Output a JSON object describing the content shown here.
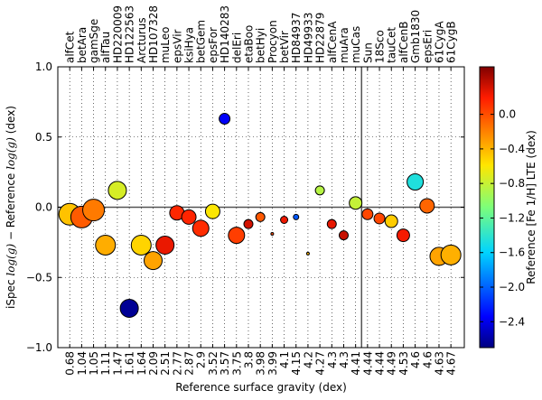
{
  "chart_data": {
    "type": "scatter",
    "xlabel": "Reference surface gravity (dex)",
    "ylabel": "iSpec log(g) − Reference log(g) (dex)",
    "ylabel_prefix": "iSpec ",
    "ylabel_mid": " − Reference ",
    "ylabel_suffix": " (dex)",
    "ylabel_math": "log(g)",
    "ylim": [
      -1.0,
      1.0
    ],
    "yticks": [
      "1.0",
      "0.5",
      "0.0",
      "−0.5",
      "−1.0"
    ],
    "ytick_values": [
      1.0,
      0.5,
      0.0,
      -0.5,
      -1.0
    ],
    "vertical_line_after_index": 30,
    "colorbar": {
      "label": "Reference [Fe 1/H] LTE (dex)",
      "range": [
        -2.7,
        0.55
      ],
      "ticks": [
        "0.0",
        "−0.4",
        "−0.8",
        "−1.2",
        "−1.6",
        "−2.0",
        "−2.4"
      ],
      "tick_values": [
        0.0,
        -0.4,
        -0.8,
        -1.2,
        -1.6,
        -2.0,
        -2.4
      ]
    },
    "stars": [
      {
        "name": "alfCet",
        "logg": "0.68",
        "diff": -0.05,
        "feh": -0.45,
        "size": 12
      },
      {
        "name": "betAra",
        "logg": "1.04",
        "diff": -0.07,
        "feh": -0.05,
        "size": 12
      },
      {
        "name": "gamSge",
        "logg": "1.05",
        "diff": -0.02,
        "feh": -0.17,
        "size": 12
      },
      {
        "name": "alfTau",
        "logg": "1.11",
        "diff": -0.27,
        "feh": -0.37,
        "size": 11
      },
      {
        "name": "HD220009",
        "logg": "1.47",
        "diff": 0.12,
        "feh": -0.74,
        "size": 10
      },
      {
        "name": "HD122563",
        "logg": "1.61",
        "diff": -0.72,
        "feh": -2.64,
        "size": 10
      },
      {
        "name": "Arcturus",
        "logg": "1.64",
        "diff": -0.27,
        "feh": -0.52,
        "size": 11
      },
      {
        "name": "HD107328",
        "logg": "2.09",
        "diff": -0.38,
        "feh": -0.33,
        "size": 10
      },
      {
        "name": "muLeo",
        "logg": "2.51",
        "diff": -0.27,
        "feh": 0.25,
        "size": 10
      },
      {
        "name": "epsVir",
        "logg": "2.77",
        "diff": -0.04,
        "feh": 0.15,
        "size": 8
      },
      {
        "name": "ksiHya",
        "logg": "2.87",
        "diff": -0.07,
        "feh": 0.16,
        "size": 8
      },
      {
        "name": "betGem",
        "logg": "2.9",
        "diff": -0.15,
        "feh": 0.13,
        "size": 9
      },
      {
        "name": "epsFor",
        "logg": "3.52",
        "diff": -0.03,
        "feh": -0.6,
        "size": 8
      },
      {
        "name": "HD140283",
        "logg": "3.57",
        "diff": 0.63,
        "feh": -2.36,
        "size": 6
      },
      {
        "name": "delEri",
        "logg": "3.75",
        "diff": -0.2,
        "feh": 0.06,
        "size": 9
      },
      {
        "name": "etaBoo",
        "logg": "3.8",
        "diff": -0.12,
        "feh": 0.32,
        "size": 5
      },
      {
        "name": "betHyi",
        "logg": "3.98",
        "diff": -0.07,
        "feh": -0.04,
        "size": 5
      },
      {
        "name": "Procyon",
        "logg": "3.99",
        "diff": -0.19,
        "feh": 0.01,
        "size": 1.5
      },
      {
        "name": "betVir",
        "logg": "4.1",
        "diff": -0.09,
        "feh": 0.24,
        "size": 4
      },
      {
        "name": "HD84937",
        "logg": "4.15",
        "diff": -0.07,
        "feh": -2.03,
        "size": 3
      },
      {
        "name": "HD49933",
        "logg": "4.2",
        "diff": -0.33,
        "feh": -0.41,
        "size": 1.5
      },
      {
        "name": "HD22879",
        "logg": "4.27",
        "diff": 0.12,
        "feh": -0.86,
        "size": 5
      },
      {
        "name": "alfCenA",
        "logg": "4.3",
        "diff": -0.12,
        "feh": 0.26,
        "size": 5
      },
      {
        "name": "muAra",
        "logg": "4.3",
        "diff": -0.2,
        "feh": 0.35,
        "size": 5
      },
      {
        "name": "muCas",
        "logg": "4.41",
        "diff": 0.03,
        "feh": -0.81,
        "size": 7
      },
      {
        "name": "Sun",
        "logg": "4.44",
        "diff": -0.05,
        "feh": 0.03,
        "size": 6
      },
      {
        "name": "18Sco",
        "logg": "4.44",
        "diff": -0.08,
        "feh": 0.03,
        "size": 6
      },
      {
        "name": "tauCet",
        "logg": "4.49",
        "diff": -0.1,
        "feh": -0.49,
        "size": 7
      },
      {
        "name": "alfCenB",
        "logg": "4.53",
        "diff": -0.2,
        "feh": 0.22,
        "size": 7
      },
      {
        "name": "Gmb1830",
        "logg": "4.6",
        "diff": 0.18,
        "feh": -1.46,
        "size": 9
      },
      {
        "name": "epsEri",
        "logg": "4.6",
        "diff": 0.01,
        "feh": -0.09,
        "size": 8
      },
      {
        "name": "61CygA",
        "logg": "4.63",
        "diff": -0.35,
        "feh": -0.33,
        "size": 10
      },
      {
        "name": "61CygB",
        "logg": "4.67",
        "diff": -0.34,
        "feh": -0.38,
        "size": 11
      }
    ]
  }
}
